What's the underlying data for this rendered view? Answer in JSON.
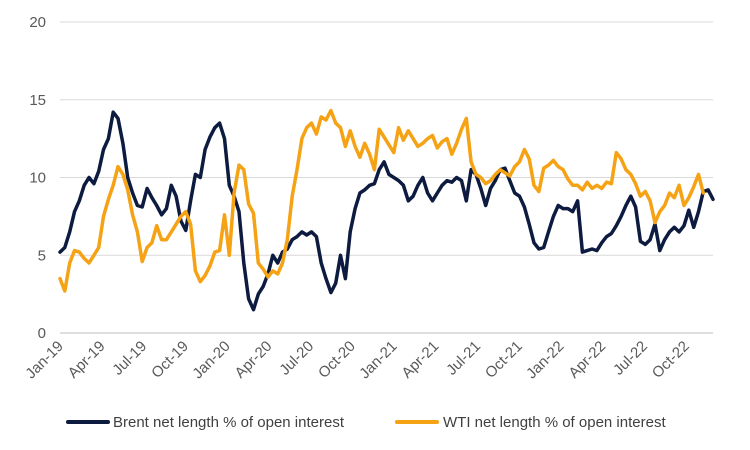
{
  "chart_data": {
    "type": "line",
    "title": "",
    "xlabel": "",
    "ylabel": "",
    "ylim": [
      0,
      20
    ],
    "yticks": [
      0,
      5,
      10,
      15,
      20
    ],
    "x_ticks": [
      "Jan-19",
      "Apr-19",
      "Jul-19",
      "Oct-19",
      "Jan-20",
      "Apr-20",
      "Jul-20",
      "Oct-20",
      "Jan-21",
      "Apr-21",
      "Jul-21",
      "Oct-21",
      "Jan-22",
      "Apr-22",
      "Jul-22",
      "Oct-22"
    ],
    "grid": "horizontal",
    "legend_position": "bottom",
    "series": [
      {
        "name": "Brent net length % of open interest",
        "color": "#0d1b40",
        "values": [
          5.2,
          5.5,
          6.5,
          7.8,
          8.5,
          9.5,
          10,
          9.6,
          10.4,
          11.8,
          12.5,
          14.2,
          13.8,
          12.2,
          10,
          9,
          8.2,
          8.1,
          9.3,
          8.7,
          8.2,
          7.6,
          8,
          9.5,
          8.8,
          7.2,
          6.6,
          8.5,
          10.2,
          10,
          11.8,
          12.6,
          13.2,
          13.5,
          12.5,
          9.5,
          8.8,
          7.8,
          4.5,
          2.2,
          1.5,
          2.5,
          3,
          3.8,
          5,
          4.5,
          5.2,
          5.4,
          6,
          6.2,
          6.5,
          6.3,
          6.5,
          6.2,
          4.5,
          3.5,
          2.6,
          3.2,
          5,
          3.5,
          6.5,
          8,
          9,
          9.2,
          9.5,
          9.6,
          10.5,
          11,
          10.2,
          10,
          9.8,
          9.5,
          8.5,
          8.8,
          9.5,
          10,
          9,
          8.5,
          9,
          9.5,
          9.8,
          9.7,
          10,
          9.8,
          8.5,
          10.5,
          10.2,
          9.3,
          8.2,
          9.3,
          9.8,
          10.5,
          10.6,
          9.8,
          9,
          8.8,
          8.1,
          7,
          5.8,
          5.4,
          5.5,
          6.5,
          7.5,
          8.2,
          8,
          8,
          7.8,
          8.5,
          5.2,
          5.3,
          5.4,
          5.3,
          5.8,
          6.2,
          6.4,
          6.9,
          7.5,
          8.2,
          8.8,
          8.1,
          5.9,
          5.7,
          6,
          7,
          5.3,
          6,
          6.5,
          6.8,
          6.5,
          6.9,
          7.9,
          6.8,
          7.8,
          9.1,
          9.2,
          8.6
        ]
      },
      {
        "name": "WTI net length % of open interest",
        "color": "#f5a214",
        "values": [
          3.5,
          2.7,
          4.5,
          5.3,
          5.2,
          4.8,
          4.5,
          5,
          5.5,
          7.5,
          8.6,
          9.5,
          10.7,
          10.2,
          9.2,
          7.6,
          6.5,
          4.6,
          5.5,
          5.8,
          6.9,
          6,
          6,
          6.5,
          7,
          7.5,
          7.8,
          7,
          4,
          3.3,
          3.7,
          4.3,
          5.2,
          5.3,
          7.6,
          5,
          9,
          10.8,
          10.5,
          8.3,
          7.7,
          4.5,
          4.1,
          3.6,
          4,
          3.8,
          4.5,
          6,
          8.8,
          10.5,
          12.5,
          13.2,
          13.5,
          12.8,
          13.9,
          13.7,
          14.3,
          13.5,
          13.2,
          12,
          13,
          12,
          11.3,
          12.2,
          11.5,
          10.5,
          13.1,
          12.6,
          12.1,
          11.6,
          13.2,
          12.4,
          13,
          12.5,
          12,
          12.2,
          12.5,
          12.7,
          11.9,
          12.3,
          12.5,
          11.5,
          12.2,
          13.1,
          13.8,
          11,
          10.2,
          10,
          9.6,
          9.8,
          10.2,
          10.5,
          10.3,
          10.1,
          10.7,
          11,
          11.8,
          11.2,
          9.5,
          9.1,
          10.6,
          10.8,
          11.1,
          10.7,
          10.5,
          9.9,
          9.5,
          9.5,
          9.2,
          9.7,
          9.3,
          9.5,
          9.3,
          9.7,
          9.6,
          11.6,
          11.2,
          10.5,
          10.2,
          9.6,
          8.8,
          9.1,
          8.5,
          7.1,
          7.8,
          8.2,
          9,
          8.7,
          9.5,
          8.2,
          8.7,
          9.4,
          10.2,
          9
        ]
      }
    ]
  }
}
